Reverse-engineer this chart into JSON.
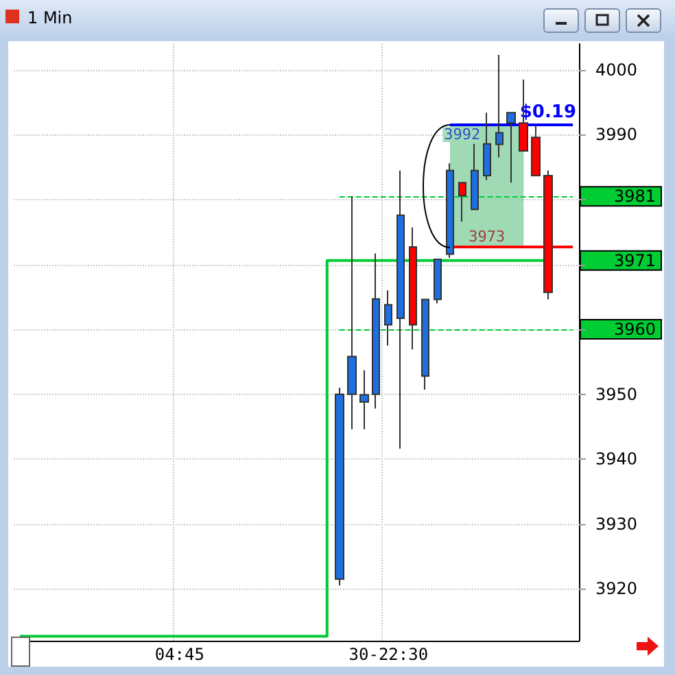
{
  "chart_data": {
    "type": "candlestick",
    "title": "1 Min",
    "categories": [
      null,
      null,
      null,
      null,
      null,
      null,
      null,
      null,
      null,
      null,
      null,
      null,
      null,
      "04:45",
      null,
      null,
      null,
      null,
      null,
      null,
      null,
      null,
      null,
      null,
      null,
      null,
      null,
      null,
      null,
      null,
      "30-22:30",
      null,
      null,
      null,
      null,
      null,
      null,
      null,
      null,
      null,
      null,
      null,
      null,
      null,
      null,
      null
    ],
    "colors": [
      null,
      null,
      null,
      null,
      null,
      null,
      null,
      null,
      null,
      null,
      null,
      null,
      null,
      null,
      null,
      null,
      null,
      null,
      null,
      null,
      null,
      null,
      null,
      null,
      null,
      null,
      "#1e6fe0",
      "#1e6fe0",
      "#1e6fe0",
      "#1e6fe0",
      "#1e6fe0",
      "#1e6fe0",
      "#ff0000",
      "#1e6fe0",
      "#1e6fe0",
      "#1e6fe0",
      "#ff0000",
      "#1e6fe0",
      "#1e6fe0",
      "#1e6fe0",
      "#1e6fe0",
      "#ff0000",
      "#ff0000",
      "#ff0000",
      null,
      null
    ],
    "ohlc": [
      null,
      null,
      null,
      null,
      null,
      null,
      null,
      null,
      null,
      null,
      null,
      null,
      null,
      null,
      null,
      null,
      null,
      null,
      null,
      null,
      null,
      null,
      null,
      null,
      null,
      null,
      [
        3921.5,
        3951,
        3920.5,
        3950
      ],
      [
        3950,
        3980.5,
        3944.6,
        3955.8
      ],
      [
        3948.8,
        3953.7,
        3944.6,
        3949.9
      ],
      [
        3950,
        3971.7,
        3947.8,
        3964.7
      ],
      [
        3960.7,
        3966,
        3957.5,
        3963.8
      ],
      [
        3961.7,
        3984.5,
        3941.6,
        3977.6
      ],
      [
        3972.7,
        3975.7,
        3956.9,
        3960.7
      ],
      [
        3952.8,
        3964.6,
        3950.7,
        3964.6
      ],
      [
        3964.6,
        3970.8,
        3964,
        3970.8
      ],
      [
        3971.6,
        3985.6,
        3971,
        3984.5
      ],
      [
        3982.6,
        3982.6,
        3976.6,
        3980.6
      ],
      [
        3978.5,
        3988.6,
        3978.5,
        3984.5
      ],
      [
        3983.7,
        3993.4,
        3983,
        3988.6
      ],
      [
        3988.5,
        4002.3,
        3986.5,
        3990.3
      ],
      [
        3991.8,
        3993.4,
        3982.6,
        3993.4
      ],
      [
        3991.8,
        3998.5,
        3987.5,
        3987.5
      ],
      [
        3989.6,
        3991.4,
        3983.7,
        3983.7
      ],
      [
        3983.7,
        3984.5,
        3964.6,
        3965.7
      ],
      null,
      null
    ],
    "series": [
      {
        "type": "step",
        "color": "#00cc33",
        "values": [
          3912.7,
          3912.7,
          3912.7,
          3912.7,
          3912.7,
          3912.7,
          3912.7,
          3912.7,
          3912.7,
          3912.7,
          3912.7,
          3912.7,
          3912.7,
          3912.7,
          3912.7,
          3912.7,
          3912.7,
          3912.7,
          3912.7,
          3912.7,
          3912.7,
          3912.7,
          3912.7,
          3912.7,
          3912.7,
          3912.7,
          3970.6,
          3970.6,
          3970.6,
          3970.6,
          3970.6,
          3970.6,
          3970.6,
          3970.6,
          3970.6,
          3970.6,
          3970.6,
          3970.6,
          3970.6,
          3970.6,
          3970.6,
          3970.6,
          3970.6,
          3970.6,
          null,
          null
        ]
      }
    ],
    "ylim": [
      3912,
      4004
    ],
    "yticks": [
      3920,
      3930,
      3940,
      3950,
      {
        "value": 3960,
        "label": null
      },
      {
        "value": 3970,
        "label": null
      },
      {
        "value": 3980,
        "label": null
      },
      3990,
      4000
    ],
    "grid": true,
    "ref_lines": [
      {
        "axis": "y",
        "value": 3991.6,
        "color": "#0000ff",
        "line_style": "solid"
      },
      {
        "axis": "y",
        "value": 3972.7,
        "color": "#ff0000",
        "line_style": "solid"
      },
      {
        "axis": "y",
        "value": 3980.5,
        "label": "3981",
        "color": "#00cc33",
        "line_style": "dashed"
      },
      {
        "axis": "y",
        "value": 3960,
        "label": "3960",
        "color": "#00cc33",
        "line_style": "dashed"
      }
    ],
    "bands": [
      {
        "axis": "y",
        "from": 3972.7,
        "to": 3991.6,
        "color": "#8fd4a8"
      }
    ],
    "annotations": [
      {
        "text": "3992",
        "y": 3991.6
      },
      {
        "text": "3973",
        "y": 3972.7
      },
      "3971",
      "$0.19"
    ]
  }
}
